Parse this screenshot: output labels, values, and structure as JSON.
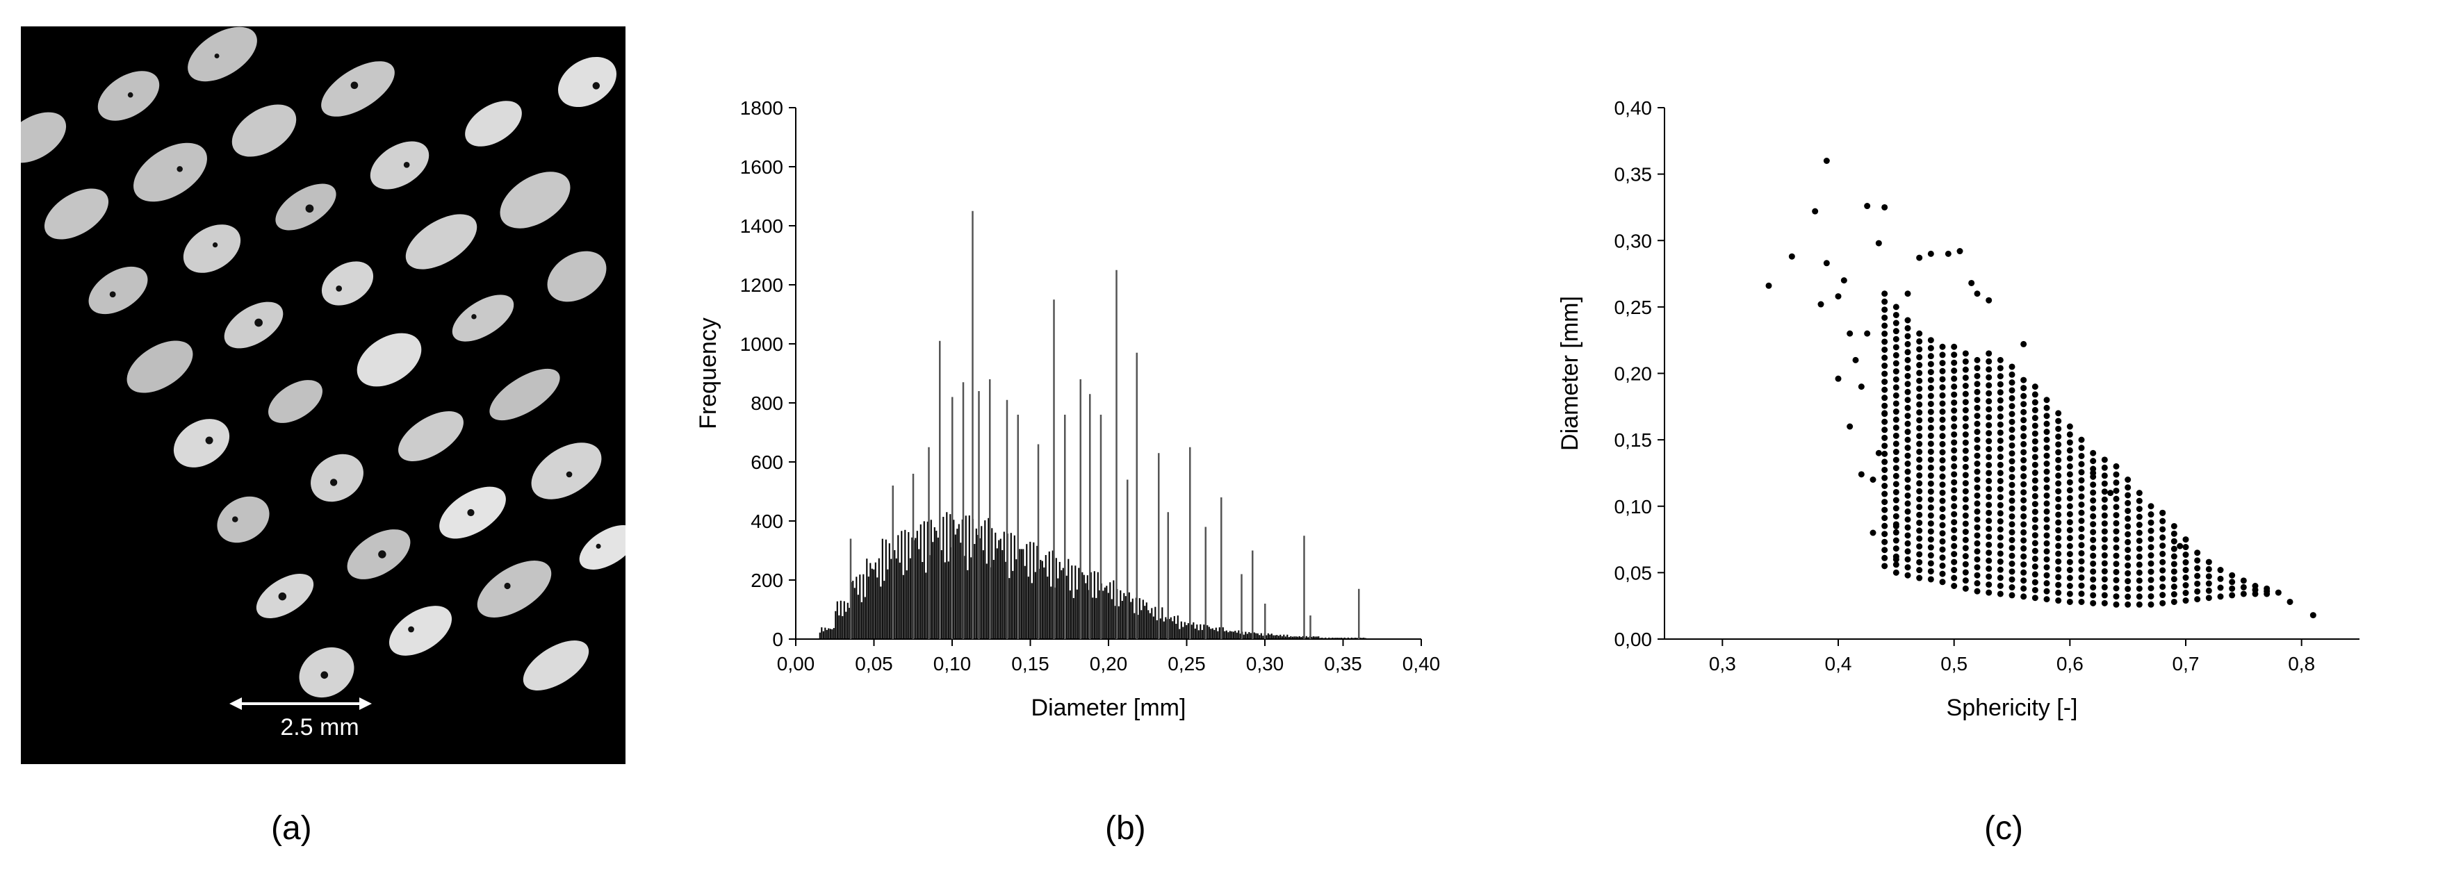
{
  "panels": {
    "a": {
      "label": "(a)",
      "scale_bar_text": "2.5 mm"
    },
    "b": {
      "label": "(b)"
    },
    "c": {
      "label": "(c)"
    }
  },
  "chart_data": [
    {
      "id": "b",
      "type": "bar",
      "title": "",
      "xlabel": "Diameter [mm]",
      "ylabel": "Frequency",
      "xlim": [
        0.0,
        0.4
      ],
      "ylim": [
        0,
        1800
      ],
      "xticks": [
        "0,00",
        "0,05",
        "0,10",
        "0,15",
        "0,20",
        "0,25",
        "0,30",
        "0,35",
        "0,40"
      ],
      "yticks": [
        "0",
        "200",
        "400",
        "600",
        "800",
        "1000",
        "1200",
        "1400",
        "1600",
        "1800"
      ],
      "grid": false,
      "x": [
        0.02,
        0.03,
        0.04,
        0.05,
        0.06,
        0.07,
        0.08,
        0.09,
        0.1,
        0.11,
        0.12,
        0.13,
        0.14,
        0.15,
        0.16,
        0.17,
        0.18,
        0.19,
        0.2,
        0.21,
        0.22,
        0.23,
        0.24,
        0.25,
        0.26,
        0.27,
        0.28,
        0.29,
        0.3,
        0.31,
        0.32,
        0.33,
        0.34,
        0.35,
        0.36
      ],
      "values": [
        40,
        130,
        220,
        280,
        340,
        370,
        400,
        420,
        430,
        420,
        410,
        380,
        360,
        330,
        300,
        280,
        250,
        230,
        200,
        170,
        140,
        110,
        80,
        60,
        50,
        40,
        30,
        25,
        20,
        15,
        10,
        10,
        5,
        5,
        5
      ],
      "peaks": [
        {
          "x": 0.035,
          "y": 340
        },
        {
          "x": 0.062,
          "y": 520
        },
        {
          "x": 0.075,
          "y": 560
        },
        {
          "x": 0.085,
          "y": 650
        },
        {
          "x": 0.092,
          "y": 1010
        },
        {
          "x": 0.1,
          "y": 820
        },
        {
          "x": 0.107,
          "y": 870
        },
        {
          "x": 0.113,
          "y": 1450
        },
        {
          "x": 0.117,
          "y": 840
        },
        {
          "x": 0.124,
          "y": 880
        },
        {
          "x": 0.135,
          "y": 810
        },
        {
          "x": 0.142,
          "y": 760
        },
        {
          "x": 0.155,
          "y": 660
        },
        {
          "x": 0.165,
          "y": 1150
        },
        {
          "x": 0.172,
          "y": 760
        },
        {
          "x": 0.182,
          "y": 880
        },
        {
          "x": 0.188,
          "y": 830
        },
        {
          "x": 0.195,
          "y": 760
        },
        {
          "x": 0.205,
          "y": 1250
        },
        {
          "x": 0.212,
          "y": 540
        },
        {
          "x": 0.218,
          "y": 970
        },
        {
          "x": 0.232,
          "y": 630
        },
        {
          "x": 0.238,
          "y": 430
        },
        {
          "x": 0.252,
          "y": 650
        },
        {
          "x": 0.262,
          "y": 380
        },
        {
          "x": 0.272,
          "y": 480
        },
        {
          "x": 0.285,
          "y": 220
        },
        {
          "x": 0.292,
          "y": 300
        },
        {
          "x": 0.3,
          "y": 120
        },
        {
          "x": 0.325,
          "y": 350
        },
        {
          "x": 0.329,
          "y": 80
        },
        {
          "x": 0.36,
          "y": 170
        }
      ]
    },
    {
      "id": "c",
      "type": "scatter",
      "title": "",
      "xlabel": "Sphericity [-]",
      "ylabel": "Diameter [mm]",
      "xlim": [
        0.25,
        0.85
      ],
      "ylim": [
        0.0,
        0.4
      ],
      "xticks": [
        "0,3",
        "0,4",
        "0,5",
        "0,6",
        "0,7",
        "0,8"
      ],
      "yticks": [
        "0,00",
        "0,05",
        "0,10",
        "0,15",
        "0,20",
        "0,25",
        "0,30",
        "0,35",
        "0,40"
      ],
      "grid": false,
      "columns": [
        {
          "x": 0.44,
          "ymin": 0.055,
          "ymax": 0.26
        },
        {
          "x": 0.45,
          "ymin": 0.05,
          "ymax": 0.25
        },
        {
          "x": 0.46,
          "ymin": 0.048,
          "ymax": 0.24
        },
        {
          "x": 0.47,
          "ymin": 0.046,
          "ymax": 0.23
        },
        {
          "x": 0.48,
          "ymin": 0.045,
          "ymax": 0.225
        },
        {
          "x": 0.49,
          "ymin": 0.043,
          "ymax": 0.22
        },
        {
          "x": 0.5,
          "ymin": 0.04,
          "ymax": 0.22
        },
        {
          "x": 0.51,
          "ymin": 0.038,
          "ymax": 0.215
        },
        {
          "x": 0.52,
          "ymin": 0.036,
          "ymax": 0.21
        },
        {
          "x": 0.53,
          "ymin": 0.035,
          "ymax": 0.215
        },
        {
          "x": 0.54,
          "ymin": 0.034,
          "ymax": 0.21
        },
        {
          "x": 0.55,
          "ymin": 0.033,
          "ymax": 0.205
        },
        {
          "x": 0.56,
          "ymin": 0.032,
          "ymax": 0.195
        },
        {
          "x": 0.57,
          "ymin": 0.031,
          "ymax": 0.19
        },
        {
          "x": 0.58,
          "ymin": 0.03,
          "ymax": 0.18
        },
        {
          "x": 0.59,
          "ymin": 0.029,
          "ymax": 0.17
        },
        {
          "x": 0.6,
          "ymin": 0.028,
          "ymax": 0.16
        },
        {
          "x": 0.61,
          "ymin": 0.028,
          "ymax": 0.15
        },
        {
          "x": 0.62,
          "ymin": 0.027,
          "ymax": 0.14
        },
        {
          "x": 0.63,
          "ymin": 0.027,
          "ymax": 0.135
        },
        {
          "x": 0.64,
          "ymin": 0.026,
          "ymax": 0.13
        },
        {
          "x": 0.65,
          "ymin": 0.026,
          "ymax": 0.12
        },
        {
          "x": 0.66,
          "ymin": 0.026,
          "ymax": 0.11
        },
        {
          "x": 0.67,
          "ymin": 0.026,
          "ymax": 0.1
        },
        {
          "x": 0.68,
          "ymin": 0.027,
          "ymax": 0.095
        },
        {
          "x": 0.69,
          "ymin": 0.028,
          "ymax": 0.085
        },
        {
          "x": 0.7,
          "ymin": 0.029,
          "ymax": 0.075
        },
        {
          "x": 0.71,
          "ymin": 0.03,
          "ymax": 0.065
        },
        {
          "x": 0.72,
          "ymin": 0.031,
          "ymax": 0.058
        },
        {
          "x": 0.73,
          "ymin": 0.032,
          "ymax": 0.052
        },
        {
          "x": 0.74,
          "ymin": 0.033,
          "ymax": 0.048
        },
        {
          "x": 0.75,
          "ymin": 0.034,
          "ymax": 0.044
        },
        {
          "x": 0.76,
          "ymin": 0.034,
          "ymax": 0.04
        },
        {
          "x": 0.77,
          "ymin": 0.034,
          "ymax": 0.038
        }
      ],
      "points": [
        [
          0.34,
          0.266
        ],
        [
          0.36,
          0.288
        ],
        [
          0.38,
          0.322
        ],
        [
          0.385,
          0.252
        ],
        [
          0.39,
          0.36
        ],
        [
          0.39,
          0.283
        ],
        [
          0.4,
          0.258
        ],
        [
          0.4,
          0.196
        ],
        [
          0.405,
          0.27
        ],
        [
          0.41,
          0.23
        ],
        [
          0.415,
          0.21
        ],
        [
          0.42,
          0.124
        ],
        [
          0.42,
          0.19
        ],
        [
          0.425,
          0.326
        ],
        [
          0.43,
          0.08
        ],
        [
          0.435,
          0.298
        ],
        [
          0.435,
          0.14
        ],
        [
          0.44,
          0.325
        ],
        [
          0.44,
          0.17
        ],
        [
          0.45,
          0.085
        ],
        [
          0.46,
          0.26
        ],
        [
          0.47,
          0.287
        ],
        [
          0.48,
          0.29
        ],
        [
          0.495,
          0.29
        ],
        [
          0.505,
          0.292
        ],
        [
          0.515,
          0.268
        ],
        [
          0.52,
          0.26
        ],
        [
          0.53,
          0.255
        ],
        [
          0.56,
          0.222
        ],
        [
          0.62,
          0.125
        ],
        [
          0.635,
          0.11
        ],
        [
          0.68,
          0.095
        ],
        [
          0.695,
          0.07
        ],
        [
          0.79,
          0.028
        ],
        [
          0.81,
          0.018
        ],
        [
          0.78,
          0.035
        ],
        [
          0.43,
          0.12
        ],
        [
          0.41,
          0.16
        ],
        [
          0.425,
          0.23
        ],
        [
          0.45,
          0.06
        ]
      ]
    }
  ]
}
